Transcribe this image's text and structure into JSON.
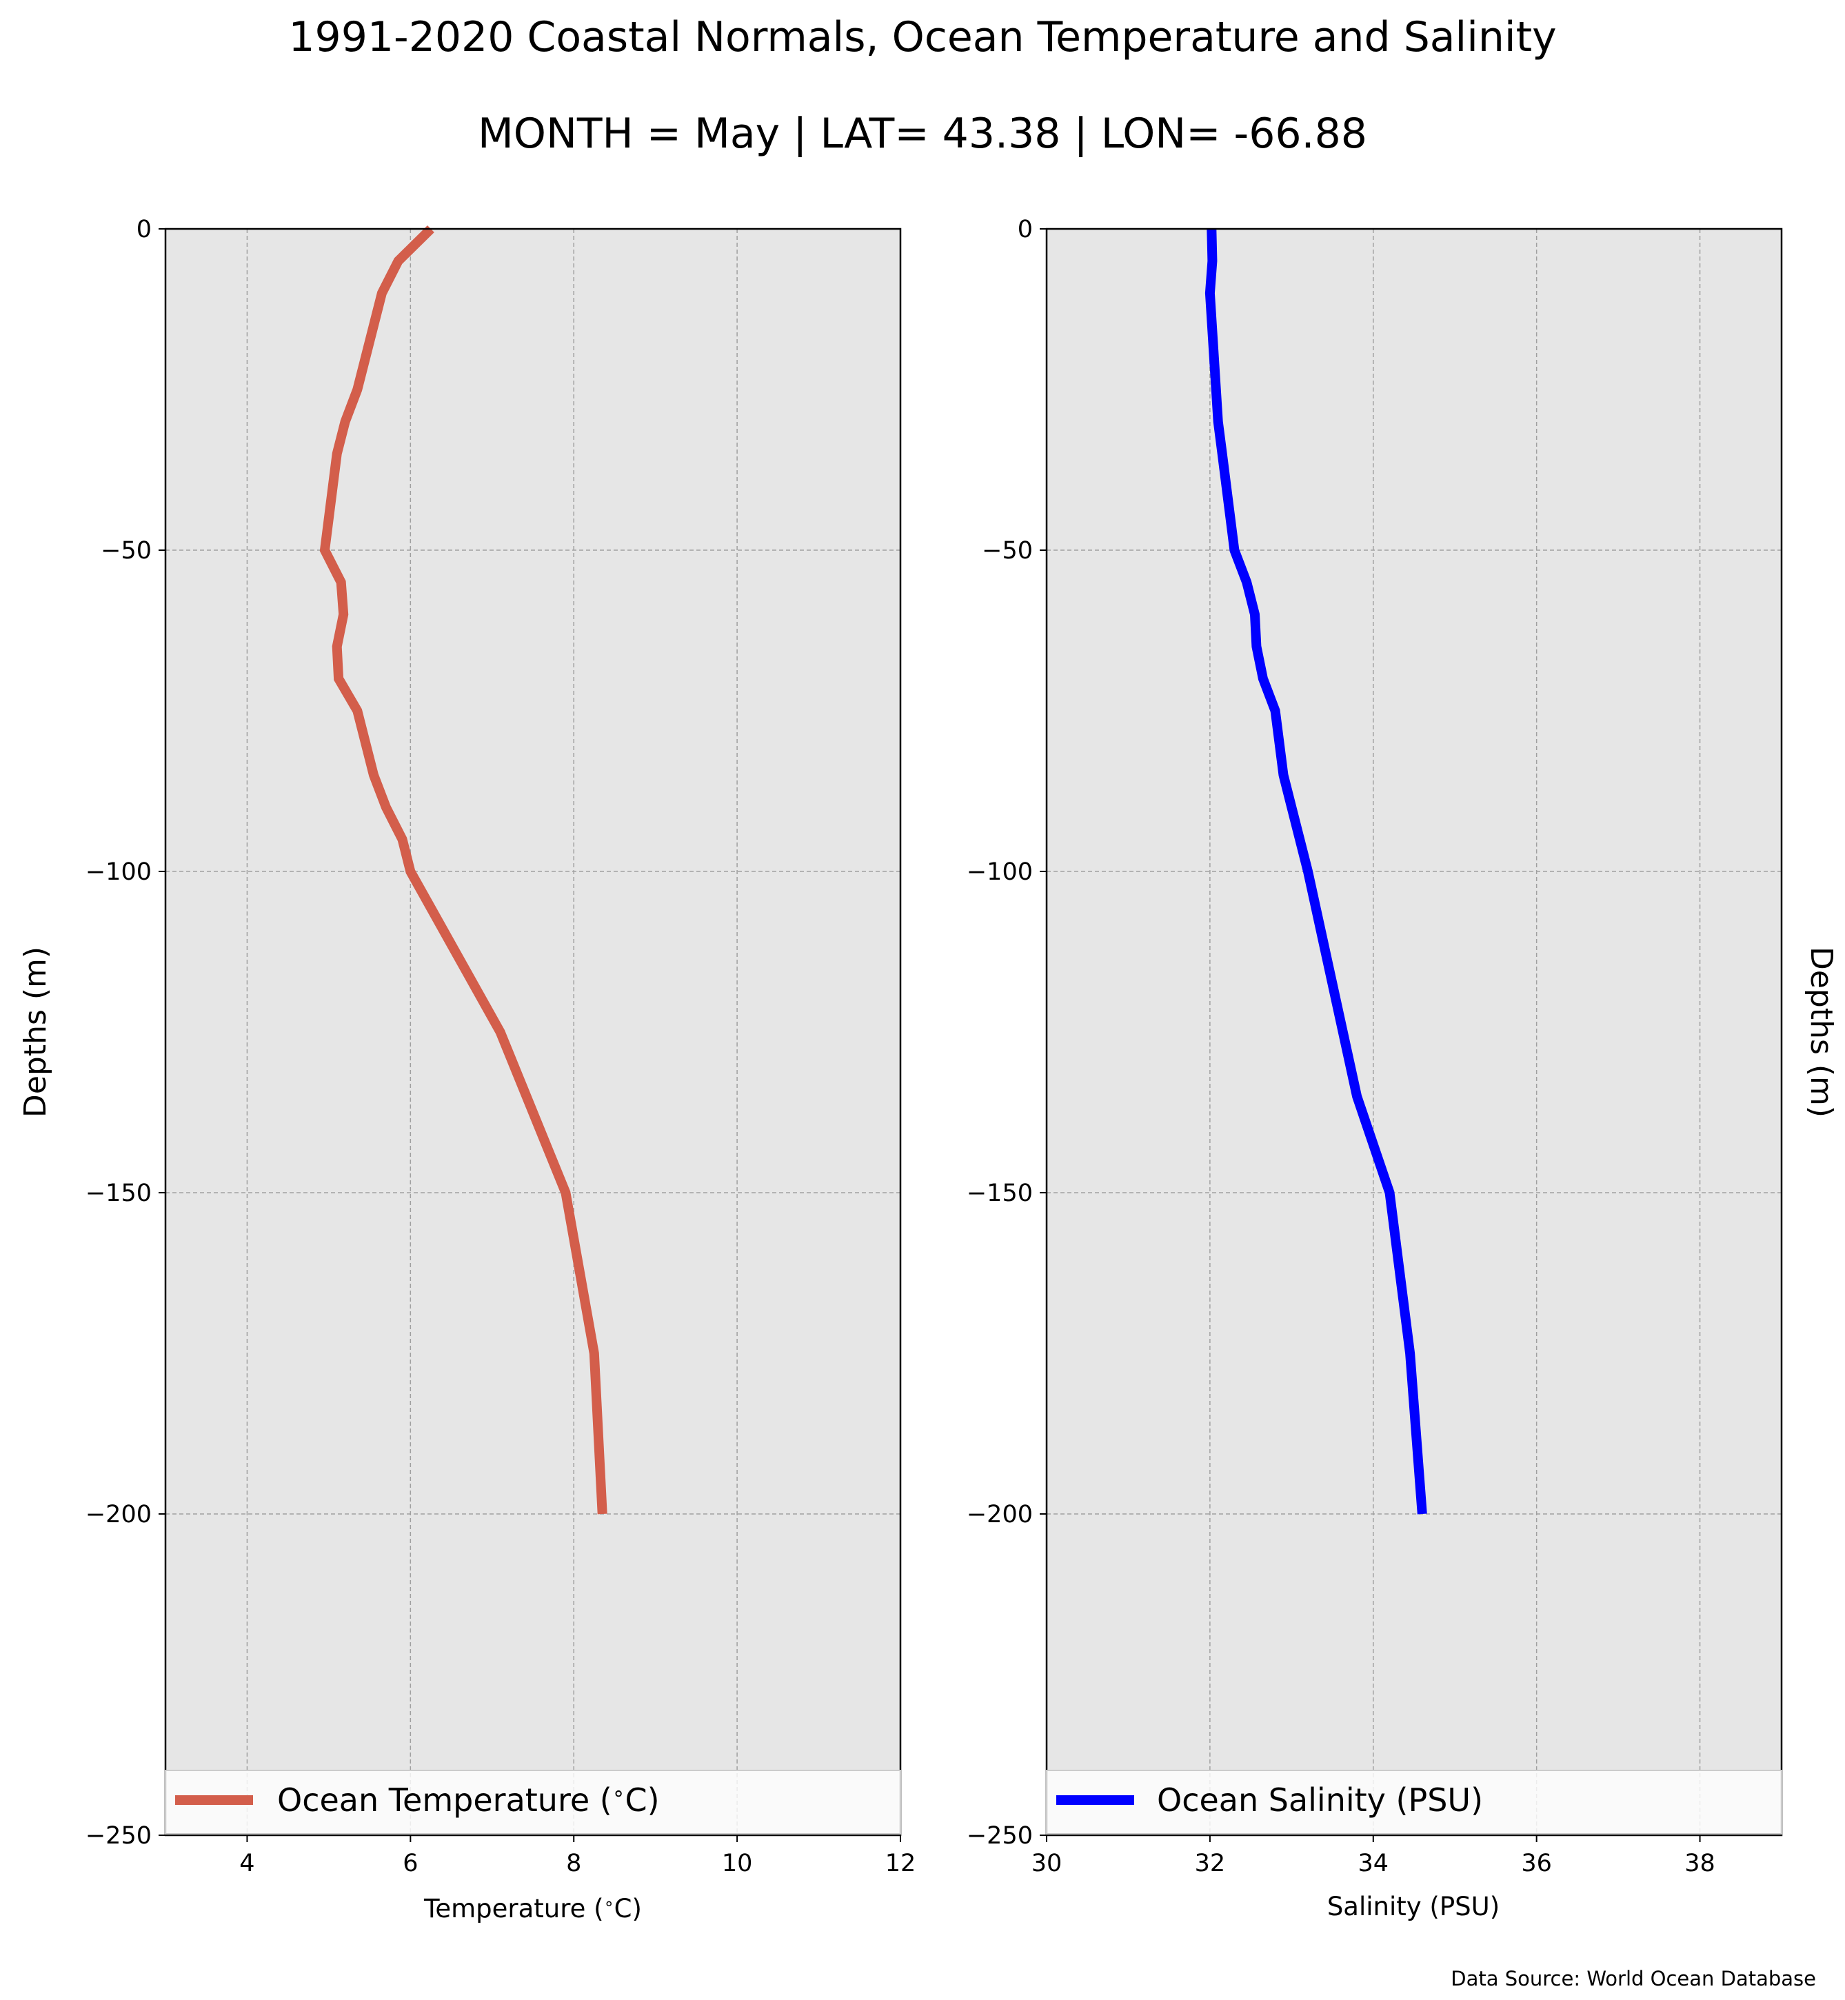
{
  "figure": {
    "title": "1991-2020 Coastal Normals, Ocean Temperature and Salinity",
    "subtitle": "MONTH = May | LAT= 43.38 | LON= -66.88",
    "source": "Data Source: World Ocean Database"
  },
  "colors": {
    "plot_background": "#e6e6e6",
    "grid": "#a0a0a0",
    "temperature_line": "#d35e4b",
    "salinity_line": "#0000ff"
  },
  "chart_data": [
    {
      "type": "line",
      "xlabel": "Temperature ($^\\circ$C)",
      "ylabel": "Depths (m)",
      "xlim": [
        3,
        12
      ],
      "ylim": [
        -250,
        0
      ],
      "xticks": [
        4,
        6,
        8,
        10,
        12
      ],
      "xticklabels": [
        "4",
        "6",
        "8",
        "10",
        "12"
      ],
      "yticks": [
        0,
        -50,
        -100,
        -150,
        -200,
        -250
      ],
      "yticklabels": [
        "0",
        "−50",
        "−100",
        "−150",
        "−200",
        "−250"
      ],
      "grid": true,
      "legend_position": "lower center",
      "series": [
        {
          "name": "Ocean Temperature ($^\\circ$C)",
          "color": "#d35e4b",
          "x": [
            6.25,
            5.85,
            5.65,
            5.35,
            5.2,
            5.1,
            5.05,
            4.95,
            5.15,
            5.18,
            5.1,
            5.12,
            5.35,
            5.55,
            5.7,
            5.9,
            6.0,
            7.1,
            7.9,
            8.25,
            8.35
          ],
          "y": [
            0,
            -5,
            -10,
            -25,
            -30,
            -35,
            -40,
            -50,
            -55,
            -60,
            -65,
            -70,
            -75,
            -85,
            -90,
            -95,
            -100,
            -125,
            -150,
            -175,
            -200
          ]
        }
      ]
    },
    {
      "type": "line",
      "xlabel": "Salinity (PSU)",
      "ylabel": "Depths (m)",
      "xlim": [
        30,
        39
      ],
      "ylim": [
        -250,
        0
      ],
      "xticks": [
        30,
        32,
        34,
        36,
        38
      ],
      "xticklabels": [
        "30",
        "32",
        "34",
        "36",
        "38"
      ],
      "yticks": [
        0,
        -50,
        -100,
        -150,
        -200,
        -250
      ],
      "yticklabels": [
        "0",
        "−50",
        "−100",
        "−150",
        "−200",
        "−250"
      ],
      "grid": true,
      "legend_position": "lower center",
      "series": [
        {
          "name": "Ocean Salinity (PSU)",
          "color": "#0000ff",
          "x": [
            32.02,
            32.03,
            32.0,
            32.05,
            32.1,
            32.15,
            32.3,
            32.45,
            32.55,
            32.57,
            32.65,
            32.8,
            32.9,
            33.0,
            33.2,
            33.8,
            34.2,
            34.45,
            34.6
          ],
          "y": [
            0,
            -5,
            -10,
            -20,
            -30,
            -35,
            -50,
            -55,
            -60,
            -65,
            -70,
            -75,
            -85,
            -90,
            -100,
            -135,
            -150,
            -175,
            -200
          ]
        }
      ]
    }
  ]
}
